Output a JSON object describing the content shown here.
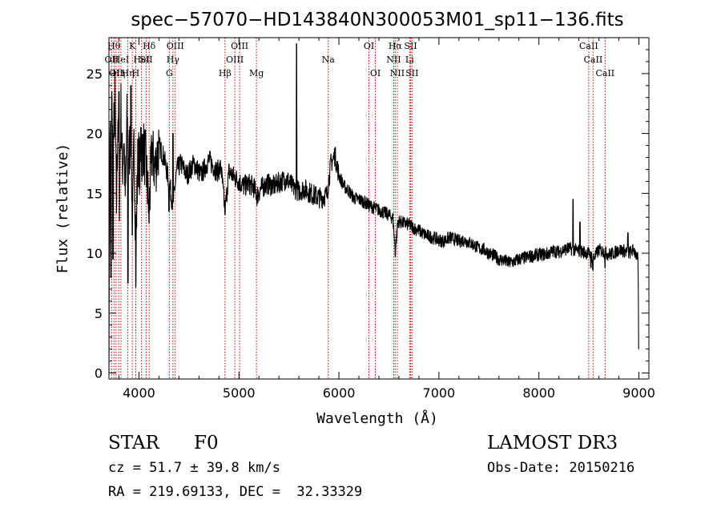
{
  "chart_data": {
    "type": "line",
    "title": "spec−57070−HD143840N300053M01_sp11−136.fits",
    "xlabel": "Wavelength (Å)",
    "ylabel": "Flux (relative)",
    "xlim": [
      3700,
      9100
    ],
    "ylim": [
      -0.5,
      28
    ],
    "xticks": [
      4000,
      5000,
      6000,
      7000,
      8000,
      9000
    ],
    "yticks": [
      0,
      5,
      10,
      15,
      20,
      25
    ],
    "grid": false,
    "line_color": "#000000",
    "marker_color": "#cc0000",
    "series": [
      {
        "name": "flux",
        "anchors": [
          [
            3700,
            0
          ],
          [
            3705,
            11.5
          ],
          [
            3712,
            21
          ],
          [
            3720,
            17
          ],
          [
            3730,
            22.5
          ],
          [
            3745,
            19
          ],
          [
            3760,
            23
          ],
          [
            3775,
            14
          ],
          [
            3790,
            21.5
          ],
          [
            3805,
            15
          ],
          [
            3820,
            22
          ],
          [
            3835,
            17
          ],
          [
            3850,
            20
          ],
          [
            3865,
            14
          ],
          [
            3880,
            21
          ],
          [
            3900,
            18
          ],
          [
            3920,
            20.5
          ],
          [
            3935,
            12
          ],
          [
            3950,
            19
          ],
          [
            3970,
            10.5
          ],
          [
            3990,
            18.5
          ],
          [
            4010,
            17
          ],
          [
            4040,
            19
          ],
          [
            4070,
            17.5
          ],
          [
            4100,
            13.5
          ],
          [
            4130,
            18.5
          ],
          [
            4160,
            17
          ],
          [
            4200,
            19
          ],
          [
            4250,
            18
          ],
          [
            4300,
            16
          ],
          [
            4340,
            14
          ],
          [
            4380,
            17
          ],
          [
            4420,
            17.5
          ],
          [
            4480,
            16.5
          ],
          [
            4550,
            17.5
          ],
          [
            4620,
            16.5
          ],
          [
            4700,
            17.8
          ],
          [
            4780,
            16.8
          ],
          [
            4820,
            17.2
          ],
          [
            4861,
            13.5
          ],
          [
            4900,
            16.8
          ],
          [
            4950,
            16.4
          ],
          [
            5000,
            16
          ],
          [
            5050,
            15.6
          ],
          [
            5100,
            15.8
          ],
          [
            5150,
            15.5
          ],
          [
            5180,
            14.8
          ],
          [
            5220,
            15.4
          ],
          [
            5280,
            15.8
          ],
          [
            5350,
            15.6
          ],
          [
            5420,
            16
          ],
          [
            5480,
            16.2
          ],
          [
            5540,
            15.5
          ],
          [
            5600,
            15.2
          ],
          [
            5650,
            15.4
          ],
          [
            5700,
            15.1
          ],
          [
            5760,
            14.8
          ],
          [
            5820,
            14.6
          ],
          [
            5880,
            14.9
          ],
          [
            5920,
            17.5
          ],
          [
            5960,
            18.2
          ],
          [
            6000,
            16.5
          ],
          [
            6050,
            15.6
          ],
          [
            6100,
            15.2
          ],
          [
            6150,
            14.6
          ],
          [
            6200,
            14.5
          ],
          [
            6250,
            14.3
          ],
          [
            6300,
            14
          ],
          [
            6350,
            13.8
          ],
          [
            6400,
            13.6
          ],
          [
            6450,
            13.4
          ],
          [
            6500,
            13.2
          ],
          [
            6540,
            12.9
          ],
          [
            6563,
            10.2
          ],
          [
            6590,
            12.7
          ],
          [
            6650,
            12.5
          ],
          [
            6700,
            12.4
          ],
          [
            6750,
            12.1
          ],
          [
            6800,
            11.9
          ],
          [
            6850,
            11.6
          ],
          [
            6900,
            11.4
          ],
          [
            6950,
            11.3
          ],
          [
            7000,
            11.1
          ],
          [
            7050,
            11
          ],
          [
            7100,
            11.3
          ],
          [
            7150,
            11.2
          ],
          [
            7200,
            11
          ],
          [
            7250,
            11.1
          ],
          [
            7300,
            10.9
          ],
          [
            7350,
            10.7
          ],
          [
            7400,
            10.4
          ],
          [
            7450,
            10.3
          ],
          [
            7500,
            10
          ],
          [
            7550,
            9.8
          ],
          [
            7600,
            9.5
          ],
          [
            7650,
            9.4
          ],
          [
            7700,
            9.2
          ],
          [
            7750,
            9.3
          ],
          [
            7800,
            9.5
          ],
          [
            7850,
            9.6
          ],
          [
            7900,
            9.7
          ],
          [
            7950,
            9.8
          ],
          [
            8000,
            9.9
          ],
          [
            8050,
            9.9
          ],
          [
            8100,
            10
          ],
          [
            8150,
            10.2
          ],
          [
            8200,
            10.1
          ],
          [
            8250,
            10.3
          ],
          [
            8300,
            10.4
          ],
          [
            8350,
            10.3
          ],
          [
            8400,
            10.2
          ],
          [
            8450,
            10.1
          ],
          [
            8500,
            10
          ],
          [
            8550,
            9.6
          ],
          [
            8600,
            10.3
          ],
          [
            8650,
            10.1
          ],
          [
            8700,
            9.9
          ],
          [
            8750,
            10
          ],
          [
            8800,
            10.3
          ],
          [
            8850,
            10.2
          ],
          [
            8900,
            10
          ],
          [
            8950,
            10.3
          ],
          [
            8990,
            9.5
          ],
          [
            9000,
            2
          ]
        ],
        "spikes": [
          [
            5577,
            27.5
          ],
          [
            8342,
            14.5
          ],
          [
            3728,
            23.5
          ],
          [
            3800,
            23.5
          ],
          [
            3920,
            24
          ],
          [
            4020,
            20.5
          ],
          [
            4340,
            20
          ],
          [
            8410,
            12.6
          ],
          [
            8890,
            11.7
          ],
          [
            8520,
            8.8
          ]
        ],
        "dips": [
          [
            3720,
            8
          ],
          [
            3740,
            9.5
          ],
          [
            3890,
            7.5
          ],
          [
            3934,
            11.5
          ],
          [
            3968,
            7.2
          ],
          [
            4101,
            12.5
          ],
          [
            4300,
            13.5
          ],
          [
            4861,
            13.2
          ],
          [
            6563,
            9.7
          ],
          [
            8540,
            8.6
          ],
          [
            8662,
            8.8
          ],
          [
            8982,
            9.5
          ]
        ]
      }
    ],
    "line_markers": [
      {
        "wavelength": 3727,
        "label": "OII",
        "row": 1
      },
      {
        "wavelength": 3750,
        "label": "Hθ",
        "row": 0
      },
      {
        "wavelength": 3771,
        "label": "OII",
        "row": 2
      },
      {
        "wavelength": 3798,
        "label": "Hη",
        "row": 2
      },
      {
        "wavelength": 3820,
        "label": "HeI",
        "row": 1
      },
      {
        "wavelength": 3889,
        "label": "Hη",
        "row": 2
      },
      {
        "wavelength": 3934,
        "label": "K",
        "row": 0
      },
      {
        "wavelength": 3968,
        "label": "H",
        "row": 2
      },
      {
        "wavelength": 4026,
        "label": "HeI",
        "row": 1
      },
      {
        "wavelength": 4072,
        "label": "SII",
        "row": 1
      },
      {
        "wavelength": 4102,
        "label": "Hδ",
        "row": 0
      },
      {
        "wavelength": 4304,
        "label": "G",
        "row": 2
      },
      {
        "wavelength": 4340,
        "label": "Hγ",
        "row": 1
      },
      {
        "wavelength": 4363,
        "label": "OIII",
        "row": 0
      },
      {
        "wavelength": 4861,
        "label": "Hβ",
        "row": 2
      },
      {
        "wavelength": 4959,
        "label": "OIII",
        "row": 1
      },
      {
        "wavelength": 5007,
        "label": "OIII",
        "row": 0
      },
      {
        "wavelength": 5175,
        "label": "Mg",
        "row": 2
      },
      {
        "wavelength": 5893,
        "label": "Na",
        "row": 1
      },
      {
        "wavelength": 6300,
        "label": "OI",
        "row": 0
      },
      {
        "wavelength": 6364,
        "label": "OI",
        "row": 2
      },
      {
        "wavelength": 6548,
        "label": "NII",
        "row": 1
      },
      {
        "wavelength": 6563,
        "label": "Hα",
        "row": 0
      },
      {
        "wavelength": 6584,
        "label": "NII",
        "row": 2
      },
      {
        "wavelength": 6707,
        "label": "Li",
        "row": 1
      },
      {
        "wavelength": 6717,
        "label": "SII",
        "row": 0
      },
      {
        "wavelength": 6731,
        "label": "SII",
        "row": 2
      },
      {
        "wavelength": 8498,
        "label": "CaII",
        "row": 0
      },
      {
        "wavelength": 8542,
        "label": "CaII",
        "row": 1
      },
      {
        "wavelength": 8662,
        "label": "CaII",
        "row": 2
      }
    ]
  },
  "info": {
    "object_class": "STAR",
    "subclass": "F0",
    "survey": "LAMOST DR3",
    "cz": "cz = 51.7 ± 39.8 km/s",
    "obs_date": "Obs-Date: 20150216",
    "coords": "RA = 219.69133, DEC =  32.33329"
  }
}
